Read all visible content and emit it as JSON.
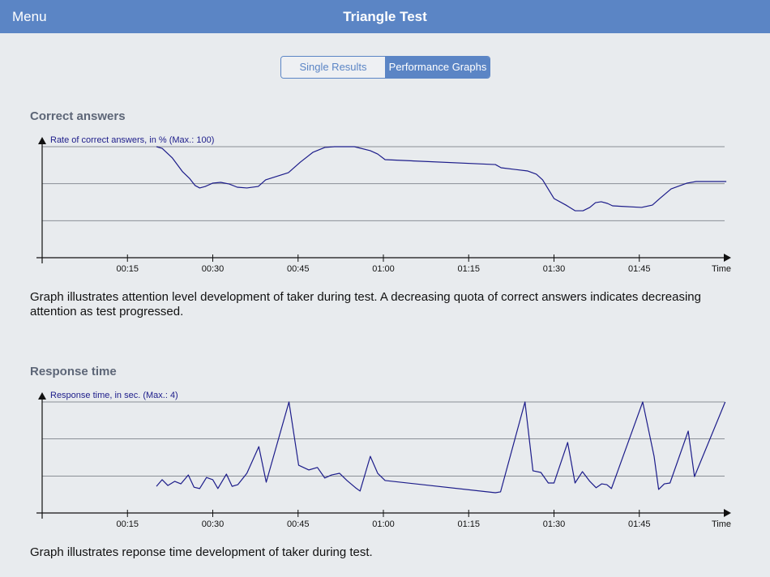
{
  "header": {
    "menu": "Menu",
    "title": "Triangle Test"
  },
  "tabs": [
    "Single Results",
    "Performance Graphs"
  ],
  "sections": [
    {
      "title": "Correct answers",
      "caption": "Graph illustrates attention level development of taker during test. A decreasing quota of correct answers indicates decreasing attention as test progressed."
    },
    {
      "title": "Response time",
      "caption": "Graph illustrates reponse time development of taker during test."
    }
  ],
  "chart_data": [
    {
      "type": "line",
      "y_label": "Rate of correct answers, in % (Max.: 100)",
      "x_label": "Time",
      "color": "#1c1c8a",
      "grid": true,
      "xlim": [
        0,
        120
      ],
      "ylim": [
        0,
        100
      ],
      "yticks": [
        33.3,
        66.7,
        100
      ],
      "xticks": [
        {
          "value": 15,
          "label": "00:15"
        },
        {
          "value": 30,
          "label": "00:30"
        },
        {
          "value": 45,
          "label": "00:45"
        },
        {
          "value": 60,
          "label": "01:00"
        },
        {
          "value": 75,
          "label": "01:15"
        },
        {
          "value": 90,
          "label": "01:30"
        },
        {
          "value": 105,
          "label": "01:45"
        }
      ],
      "x": [
        20.1,
        21.1,
        22.9,
        24.7,
        25.9,
        26.9,
        27.7,
        28.7,
        30,
        31.4,
        32.9,
        34.3,
        36,
        38,
        39.3,
        43.3,
        45.4,
        47.6,
        49.7,
        51.4,
        54.9,
        57.7,
        59,
        60.3,
        79.7,
        80.7,
        85.4,
        86.9,
        88,
        90,
        92.1,
        93.7,
        95.1,
        96.3,
        97.3,
        98.3,
        99.4,
        100.3,
        105.4,
        107.3,
        108.6,
        110.6,
        113.4,
        115,
        120.3
      ],
      "values": [
        100,
        98.5,
        89.8,
        77.4,
        71.5,
        65,
        62.8,
        64.2,
        67.2,
        67.9,
        66.4,
        63.5,
        62.8,
        64.2,
        70.1,
        76.6,
        86.1,
        94.9,
        99.3,
        100,
        100,
        96.4,
        93.4,
        88.3,
        83.9,
        81,
        78.1,
        75.2,
        70.1,
        53.3,
        47.4,
        42.3,
        42.3,
        45.3,
        49.6,
        50.4,
        48.9,
        46.7,
        45.3,
        47.4,
        53.3,
        62,
        67.2,
        68.6,
        68.6
      ]
    },
    {
      "type": "line",
      "y_label": "Response time, in sec. (Max.: 4)",
      "x_label": "Time",
      "color": "#1c1c8a",
      "grid": true,
      "xlim": [
        0,
        120
      ],
      "ylim": [
        0,
        4
      ],
      "yticks": [
        1.33,
        2.67,
        4
      ],
      "xticks": [
        {
          "value": 15,
          "label": "00:15"
        },
        {
          "value": 30,
          "label": "00:30"
        },
        {
          "value": 45,
          "label": "00:45"
        },
        {
          "value": 60,
          "label": "01:00"
        },
        {
          "value": 75,
          "label": "01:15"
        },
        {
          "value": 90,
          "label": "01:30"
        },
        {
          "value": 105,
          "label": "01:45"
        }
      ],
      "x": [
        20.1,
        21.1,
        22.1,
        23.3,
        24.4,
        25.7,
        26.7,
        27.7,
        28.9,
        30,
        30.9,
        32.4,
        33.4,
        34.4,
        36,
        38.1,
        39.4,
        43.4,
        45.1,
        46.9,
        48.4,
        49.7,
        50.9,
        52.3,
        53.6,
        55.1,
        55.9,
        57.7,
        59,
        60.3,
        79.7,
        80.6,
        84.9,
        86.3,
        87.7,
        89,
        90,
        92.4,
        93.7,
        95,
        96.3,
        97.4,
        98.4,
        99.3,
        100.1,
        105.6,
        107.6,
        108.4,
        109.4,
        110.4,
        113.6,
        114.7,
        120.1
      ],
      "values": [
        0.96,
        1.2,
        0.99,
        1.14,
        1.05,
        1.37,
        0.93,
        0.88,
        1.28,
        1.2,
        0.88,
        1.4,
        0.96,
        1.02,
        1.43,
        2.39,
        1.11,
        4,
        1.72,
        1.55,
        1.64,
        1.26,
        1.37,
        1.43,
        1.17,
        0.91,
        0.79,
        2.04,
        1.43,
        1.17,
        0.73,
        0.76,
        4,
        1.52,
        1.46,
        1.08,
        1.08,
        2.54,
        1.08,
        1.49,
        1.14,
        0.91,
        1.05,
        1.02,
        0.88,
        4,
        2.04,
        0.85,
        1.05,
        1.08,
        2.95,
        1.31,
        4
      ]
    }
  ]
}
